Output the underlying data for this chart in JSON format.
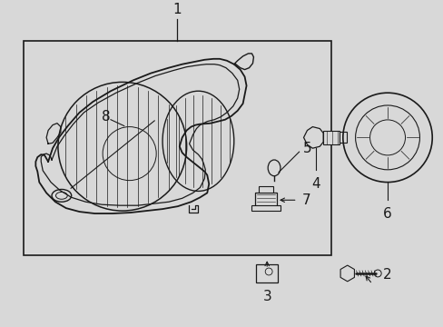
{
  "bg_color": "#d8d8d8",
  "box_bg": "#dcdcdc",
  "line_color": "#1a1a1a",
  "font_size": 10,
  "fig_w": 4.89,
  "fig_h": 3.6,
  "dpi": 100
}
